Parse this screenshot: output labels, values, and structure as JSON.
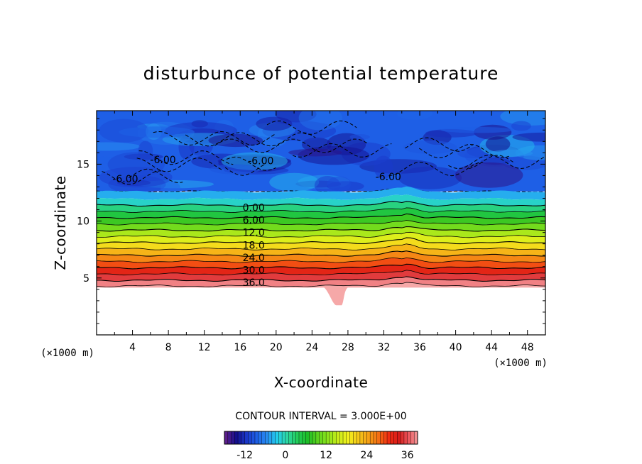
{
  "chart_data": {
    "type": "heatmap",
    "title": "disturbunce of potential temperature",
    "xlabel": "X-coordinate",
    "ylabel": "Z-coordinate",
    "x_unit": "(×1000 m)",
    "y_unit": "(×1000 m)",
    "xlim": [
      0,
      50
    ],
    "ylim": [
      0,
      19.7
    ],
    "x_ticks": [
      "4",
      "8",
      "12",
      "16",
      "20",
      "24",
      "28",
      "32",
      "36",
      "40",
      "44",
      "48"
    ],
    "y_ticks": [
      "5",
      "10",
      "15"
    ],
    "contour_interval_text": "CONTOUR INTERVAL = 3.000E+00",
    "contour_interval": 3.0,
    "contour_labels": [
      {
        "text": "-6.00",
        "x": 7.4,
        "z": 15.4
      },
      {
        "text": "-6.00",
        "x": 18.3,
        "z": 15.3
      },
      {
        "text": "-6.00",
        "x": 3.2,
        "z": 13.7
      },
      {
        "text": "-6.00",
        "x": 32.5,
        "z": 13.9
      },
      {
        "text": "0.00",
        "x": 17.5,
        "z": 11.2
      },
      {
        "text": "6.00",
        "x": 17.5,
        "z": 10.1
      },
      {
        "text": "12.0",
        "x": 17.5,
        "z": 9.0
      },
      {
        "text": "18.0",
        "x": 17.5,
        "z": 7.9
      },
      {
        "text": "24.0",
        "x": 17.5,
        "z": 6.8
      },
      {
        "text": "30.0",
        "x": 17.5,
        "z": 5.7
      },
      {
        "text": "36.0",
        "x": 17.5,
        "z": 4.6
      }
    ],
    "stratified_levels": [
      {
        "theta": 39,
        "z": 4.3
      },
      {
        "theta": 36,
        "z": 4.8
      },
      {
        "theta": 33,
        "z": 5.35
      },
      {
        "theta": 30,
        "z": 5.9
      },
      {
        "theta": 27,
        "z": 6.45
      },
      {
        "theta": 24,
        "z": 7.0
      },
      {
        "theta": 21,
        "z": 7.55
      },
      {
        "theta": 18,
        "z": 8.1
      },
      {
        "theta": 15,
        "z": 8.65
      },
      {
        "theta": 12,
        "z": 9.2
      },
      {
        "theta": 9,
        "z": 9.75
      },
      {
        "theta": 6,
        "z": 10.3
      },
      {
        "theta": 3,
        "z": 10.85
      },
      {
        "theta": 0,
        "z": 11.4
      },
      {
        "theta": -3,
        "z": 11.95
      },
      {
        "theta": -6,
        "z": 12.6
      }
    ],
    "upper_layer_range": [
      -16,
      -4
    ],
    "mountain": {
      "x_center": 27,
      "z_top": 4.3,
      "z_bottom": 2.6
    },
    "colorbar": {
      "range": [
        -18,
        39
      ],
      "tick_labels": [
        "-12",
        "0",
        "12",
        "24",
        "36"
      ],
      "tick_values": [
        -12,
        0,
        12,
        24,
        36
      ]
    },
    "grid": false,
    "legend": "colorbar bottom"
  }
}
